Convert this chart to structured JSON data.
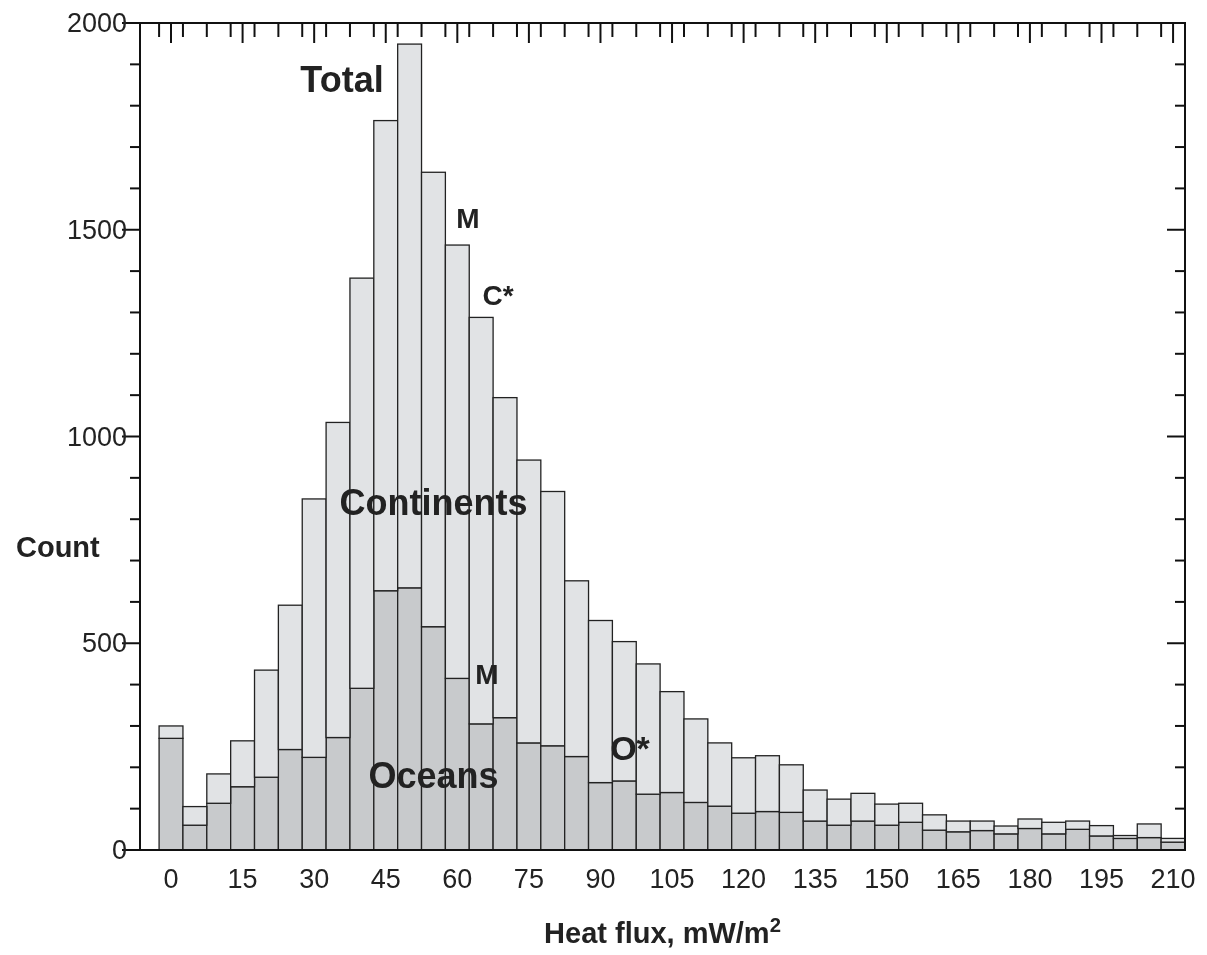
{
  "chart_data": {
    "type": "bar",
    "xlabel": "Heat flux, mW/m$^{2}$",
    "ylabel": "Count",
    "stacked": true,
    "x": [
      0,
      5,
      10,
      15,
      20,
      25,
      30,
      35,
      40,
      45,
      50,
      55,
      60,
      65,
      70,
      75,
      80,
      85,
      90,
      95,
      100,
      105,
      110,
      115,
      120,
      125,
      130,
      135,
      140,
      145,
      150,
      155,
      160,
      165,
      170,
      175,
      180,
      185,
      190,
      195,
      200,
      205,
      210
    ],
    "series": [
      {
        "name": "Oceans",
        "color": "#c8cacc",
        "values": [
          270,
          60,
          113,
          153,
          176,
          243,
          224,
          272,
          391,
          627,
          634,
          540,
          415,
          305,
          320,
          259,
          252,
          226,
          163,
          167,
          135,
          139,
          115,
          106,
          89,
          93,
          91,
          70,
          60,
          70,
          60,
          67,
          48,
          44,
          47,
          39,
          52,
          39,
          50,
          34,
          28,
          30,
          19
        ]
      },
      {
        "name": "Continents",
        "color": "#e1e3e5",
        "values": [
          30,
          45,
          71,
          111,
          259,
          349,
          625,
          762,
          992,
          1137,
          1315,
          1099,
          1048,
          983,
          774,
          684,
          615,
          425,
          392,
          337,
          315,
          244,
          202,
          153,
          134,
          135,
          115,
          75,
          63,
          67,
          51,
          46,
          37,
          26,
          23,
          19,
          23,
          28,
          20,
          25,
          7,
          33,
          9
        ]
      }
    ],
    "xlim": [
      -6.5,
      212.5
    ],
    "xticks": [
      0,
      15,
      30,
      45,
      60,
      75,
      90,
      105,
      120,
      135,
      150,
      165,
      180,
      195,
      210,
      {
        "value": -2.5,
        "label": null
      },
      {
        "value": 2.5,
        "label": null
      },
      {
        "value": 7.5,
        "label": null
      },
      {
        "value": 12.5,
        "label": null
      },
      {
        "value": 17.5,
        "label": null
      },
      {
        "value": 22.5,
        "label": null
      },
      {
        "value": 27.5,
        "label": null
      },
      {
        "value": 32.5,
        "label": null
      },
      {
        "value": 37.5,
        "label": null
      },
      {
        "value": 42.5,
        "label": null
      },
      {
        "value": 47.5,
        "label": null
      },
      {
        "value": 52.5,
        "label": null
      },
      {
        "value": 57.5,
        "label": null
      },
      {
        "value": 62.5,
        "label": null
      },
      {
        "value": 67.5,
        "label": null
      },
      {
        "value": 72.5,
        "label": null
      },
      {
        "value": 77.5,
        "label": null
      },
      {
        "value": 82.5,
        "label": null
      },
      {
        "value": 87.5,
        "label": null
      },
      {
        "value": 92.5,
        "label": null
      },
      {
        "value": 97.5,
        "label": null
      },
      {
        "value": 102.5,
        "label": null
      },
      {
        "value": 107.5,
        "label": null
      },
      {
        "value": 112.5,
        "label": null
      },
      {
        "value": 117.5,
        "label": null
      },
      {
        "value": 122.5,
        "label": null
      },
      {
        "value": 127.5,
        "label": null
      },
      {
        "value": 132.5,
        "label": null
      },
      {
        "value": 137.5,
        "label": null
      },
      {
        "value": 142.5,
        "label": null
      },
      {
        "value": 147.5,
        "label": null
      },
      {
        "value": 152.5,
        "label": null
      },
      {
        "value": 157.5,
        "label": null
      },
      {
        "value": 162.5,
        "label": null
      },
      {
        "value": 167.5,
        "label": null
      },
      {
        "value": 172.5,
        "label": null
      },
      {
        "value": 177.5,
        "label": null
      },
      {
        "value": 182.5,
        "label": null
      },
      {
        "value": 187.5,
        "label": null
      },
      {
        "value": 192.5,
        "label": null
      },
      {
        "value": 197.5,
        "label": null
      },
      {
        "value": 202.5,
        "label": null
      },
      {
        "value": 207.5,
        "label": null
      }
    ],
    "ylim": [
      0,
      2000
    ],
    "yticks": [
      0,
      500,
      1000,
      1500,
      2000,
      {
        "value": 100,
        "label": null
      },
      {
        "value": 200,
        "label": null
      },
      {
        "value": 300,
        "label": null
      },
      {
        "value": 400,
        "label": null
      },
      {
        "value": 600,
        "label": null
      },
      {
        "value": 700,
        "label": null
      },
      {
        "value": 800,
        "label": null
      },
      {
        "value": 900,
        "label": null
      },
      {
        "value": 1100,
        "label": null
      },
      {
        "value": 1200,
        "label": null
      },
      {
        "value": 1300,
        "label": null
      },
      {
        "value": 1400,
        "label": null
      },
      {
        "value": 1600,
        "label": null
      },
      {
        "value": 1700,
        "label": null
      },
      {
        "value": 1800,
        "label": null
      },
      {
        "value": 1900,
        "label": null
      }
    ],
    "grid": false,
    "annotations": [
      "Total",
      "M",
      "C*",
      "M",
      "O*"
    ]
  }
}
